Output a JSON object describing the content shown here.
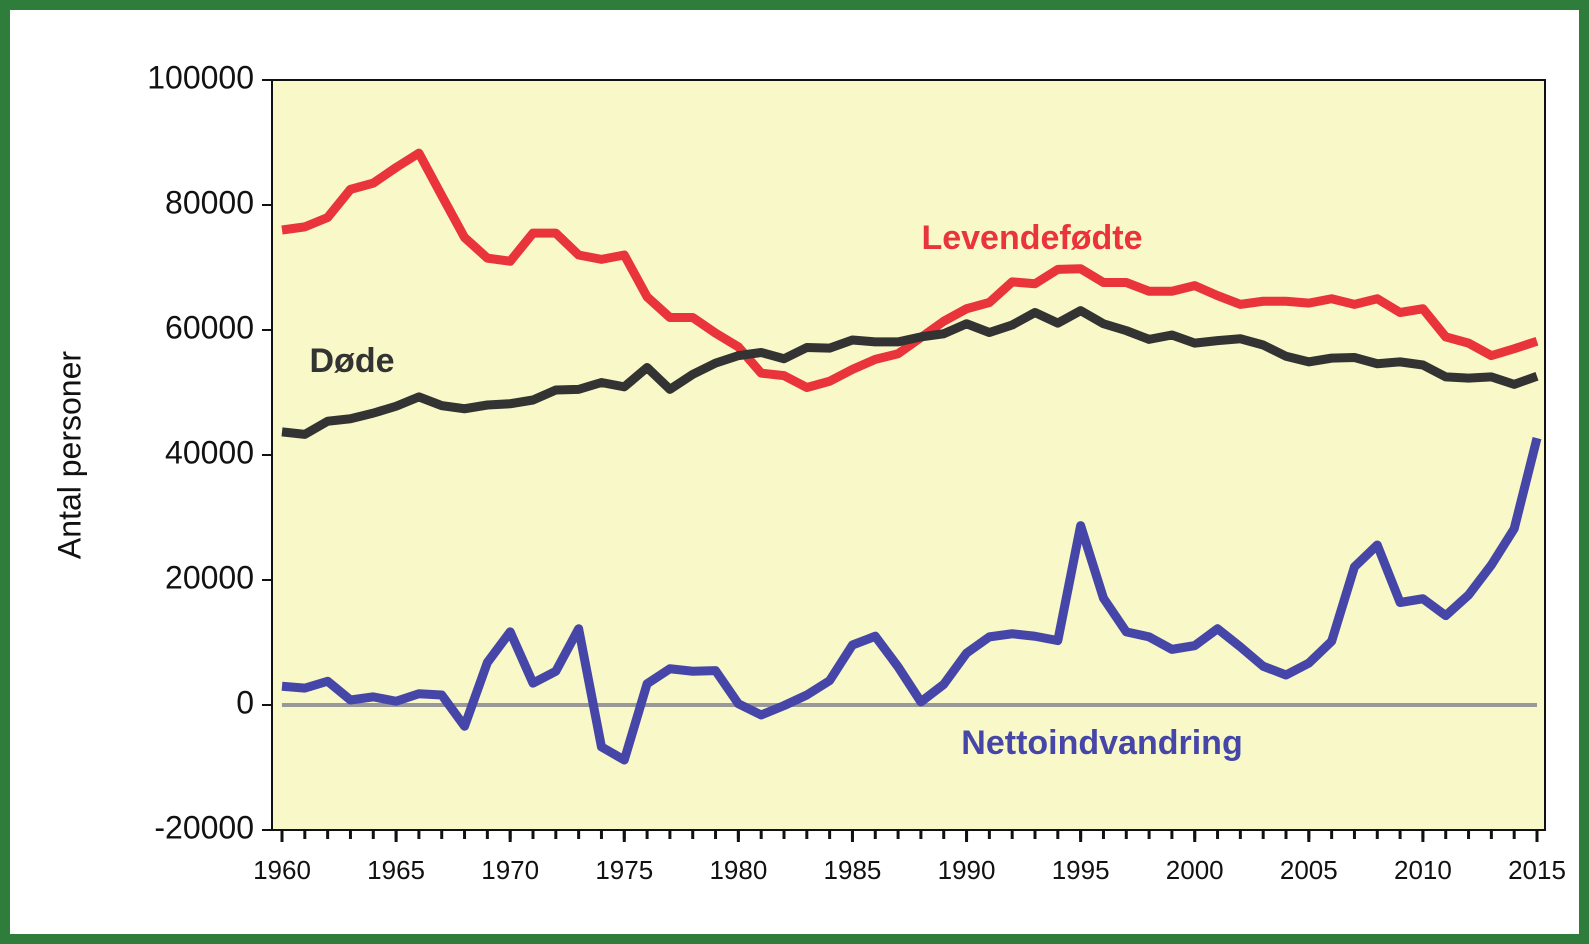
{
  "chart_data": {
    "type": "line",
    "ylabel": "Antal personer",
    "x": [
      1960,
      1961,
      1962,
      1963,
      1964,
      1965,
      1966,
      1967,
      1968,
      1969,
      1970,
      1971,
      1972,
      1973,
      1974,
      1975,
      1976,
      1977,
      1978,
      1979,
      1980,
      1981,
      1982,
      1983,
      1984,
      1985,
      1986,
      1987,
      1988,
      1989,
      1990,
      1991,
      1992,
      1993,
      1994,
      1995,
      1996,
      1997,
      1998,
      1999,
      2000,
      2001,
      2002,
      2003,
      2004,
      2005,
      2006,
      2007,
      2008,
      2009,
      2010,
      2011,
      2012,
      2013,
      2014,
      2015
    ],
    "series": [
      {
        "name": "Levendefødte",
        "color": "#e8343a",
        "values": [
          76000,
          76500,
          78000,
          82500,
          83500,
          86000,
          88300,
          81500,
          74800,
          71500,
          71000,
          75500,
          75500,
          72000,
          71300,
          72000,
          65300,
          62000,
          62000,
          59500,
          57300,
          53100,
          52700,
          50800,
          51800,
          53700,
          55300,
          56200,
          58800,
          61400,
          63400,
          64400,
          67700,
          67400,
          69700,
          69800,
          67600,
          67600,
          66200,
          66200,
          67100,
          65500,
          64100,
          64600,
          64600,
          64300,
          65000,
          64100,
          65000,
          62800,
          63400,
          58900,
          57900,
          55900,
          57000,
          58200
        ]
      },
      {
        "name": "Døde",
        "color": "#333333",
        "values": [
          43700,
          43300,
          45400,
          45800,
          46700,
          47800,
          49300,
          47900,
          47400,
          48000,
          48200,
          48800,
          50400,
          50500,
          51600,
          50900,
          54000,
          50500,
          52900,
          54700,
          55900,
          56400,
          55400,
          57200,
          57100,
          58400,
          58100,
          58100,
          58900,
          59400,
          61000,
          59600,
          60800,
          62800,
          61100,
          63100,
          61000,
          59900,
          58500,
          59200,
          57900,
          58300,
          58600,
          57600,
          55800,
          54900,
          55500,
          55600,
          54600,
          54900,
          54400,
          52500,
          52300,
          52500,
          51300,
          52600
        ]
      },
      {
        "name": "Nettoindvandring",
        "color": "#4646a8",
        "values": [
          3000,
          2700,
          3800,
          800,
          1300,
          600,
          1800,
          1600,
          -3400,
          6800,
          11700,
          3500,
          5400,
          12200,
          -6700,
          -8800,
          3400,
          5800,
          5400,
          5500,
          200,
          -1600,
          -100,
          1600,
          3900,
          9600,
          11000,
          6100,
          500,
          3300,
          8300,
          10900,
          11400,
          11000,
          10300,
          28700,
          17100,
          11700,
          10900,
          8900,
          9500,
          12200,
          9300,
          6200,
          4800,
          6700,
          10200,
          22100,
          25600,
          16400,
          17000,
          14300,
          17600,
          22400,
          28200,
          42700
        ]
      }
    ],
    "xlim": [
      1960,
      2015
    ],
    "xticks": [
      1960,
      1965,
      1970,
      1975,
      1980,
      1985,
      1990,
      1995,
      2000,
      2005,
      2010,
      2015
    ],
    "ylim": [
      -20000,
      100000
    ],
    "yticks": [
      -20000,
      0,
      20000,
      40000,
      60000,
      80000,
      100000
    ],
    "zero_line": true
  }
}
